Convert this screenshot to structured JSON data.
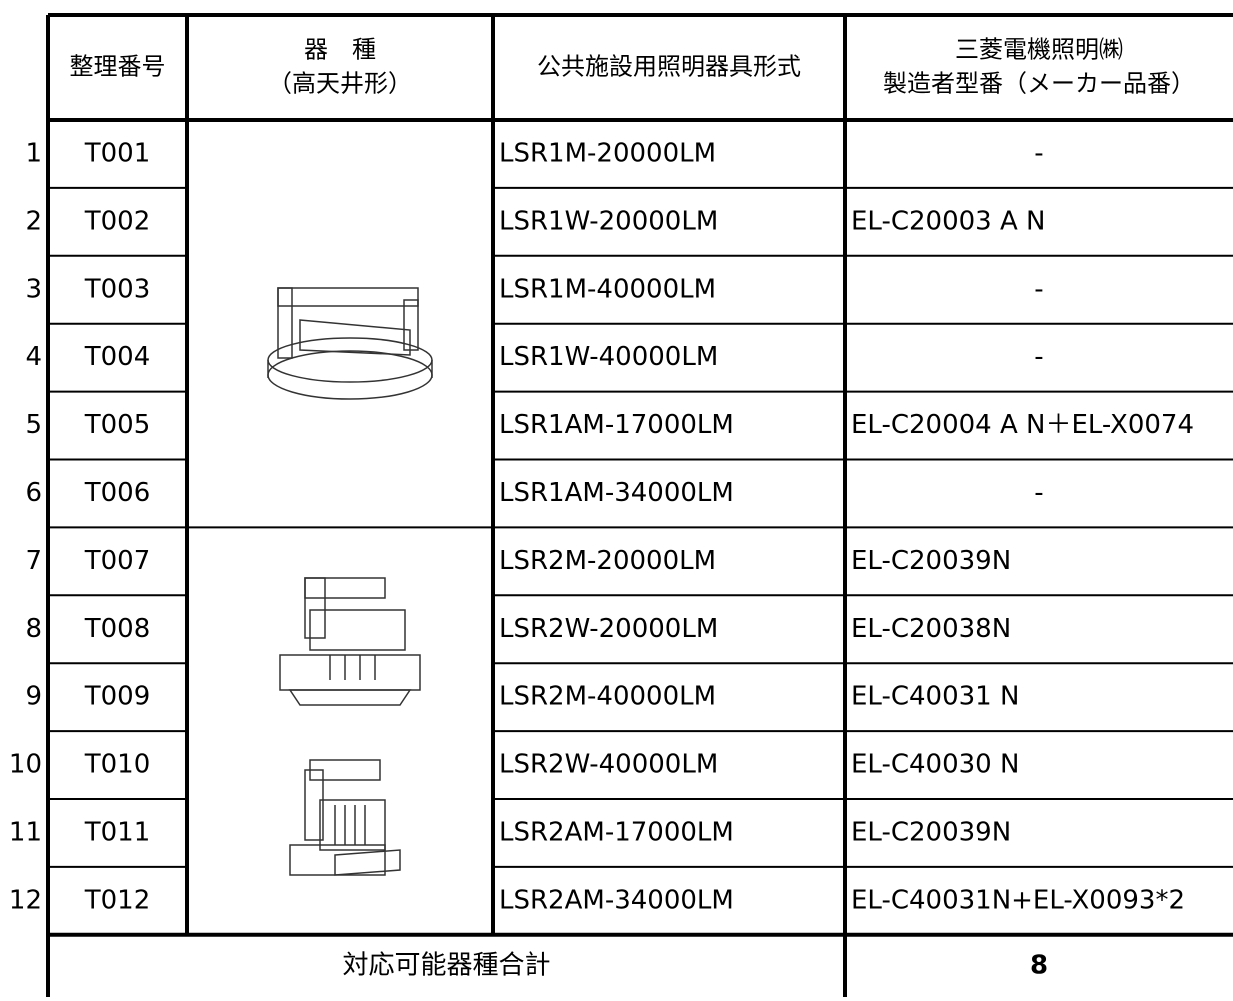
{
  "table": {
    "header": [
      [
        "整理番号"
      ],
      [
        "器　種",
        "（高天井形）"
      ],
      [
        "公共施設用照明器具形式"
      ],
      [
        "三菱電機照明㈱",
        "製造者型番（メーカー品番）"
      ]
    ],
    "rows": [
      [
        "1",
        "T001",
        "LSR1M-20000LM",
        "-"
      ],
      [
        "2",
        "T002",
        "LSR1W-20000LM",
        "EL-C20003 A N"
      ],
      [
        "3",
        "T003",
        "LSR1M-40000LM",
        "-"
      ],
      [
        "4",
        "T004",
        "LSR1W-40000LM",
        "-"
      ],
      [
        "5",
        "T005",
        "LSR1AM-17000LM",
        "EL-C20004 A N＋EL-X0074"
      ],
      [
        "6",
        "T006",
        "LSR1AM-34000LM",
        "-"
      ],
      [
        "7",
        "T007",
        "LSR2M-20000LM",
        "EL-C20039N"
      ],
      [
        "8",
        "T008",
        "LSR2W-20000LM",
        "EL-C20038N"
      ],
      [
        "9",
        "T009",
        "LSR2M-40000LM",
        "EL-C40031 N"
      ],
      [
        "10",
        "T010",
        "LSR2W-40000LM",
        "EL-C40030 N"
      ],
      [
        "11",
        "T011",
        "LSR2AM-17000LM",
        "EL-C20039N"
      ],
      [
        "12",
        "T012",
        "LSR2AM-34000LM",
        "EL-C40031N+EL-X0093*2"
      ]
    ],
    "total": {
      "label": "対応可能器種合計",
      "value": 8
    }
  }
}
